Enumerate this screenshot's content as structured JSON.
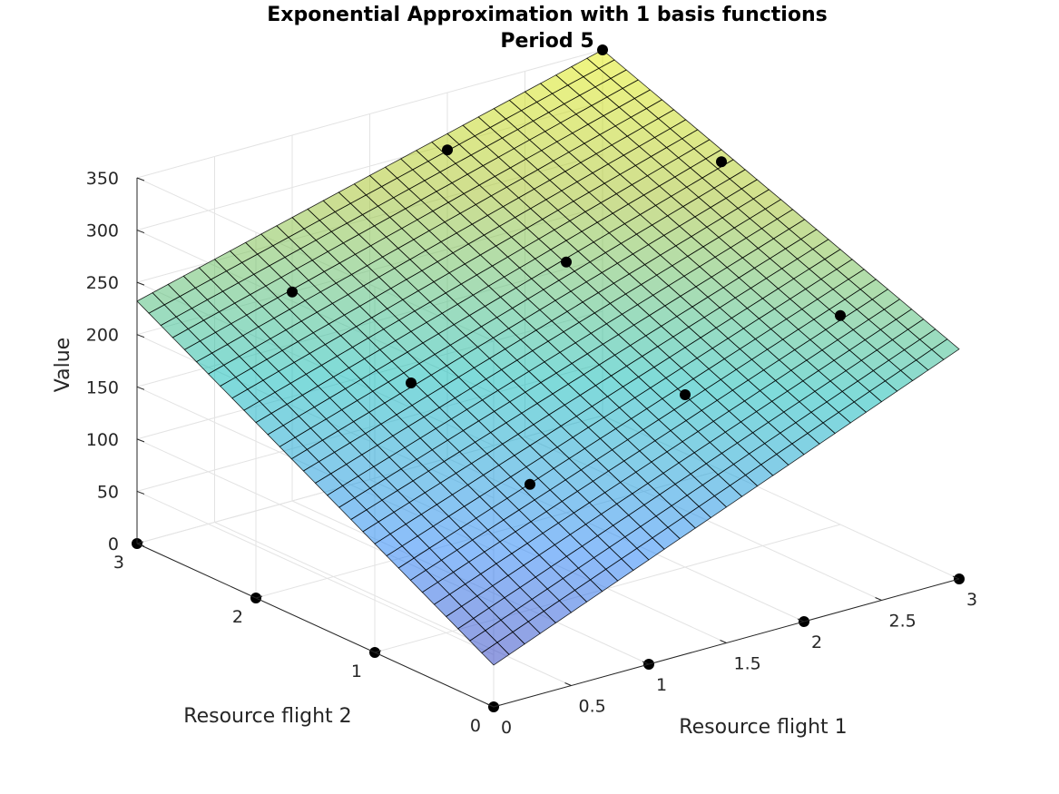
{
  "chart_data": {
    "type": "surface",
    "title": [
      "Exponential Approximation with 1 basis functions",
      "Period 5"
    ],
    "xlabel": "Resource flight 1",
    "ylabel": "Resource flight 2",
    "zlabel": "Value",
    "xlim": [
      0,
      3
    ],
    "ylim": [
      0,
      3
    ],
    "zlim": [
      0,
      350
    ],
    "x_ticks": [
      "0",
      "0.5",
      "1",
      "1.5",
      "2",
      "2.5",
      "3"
    ],
    "y_ticks": [
      "0",
      "1",
      "2",
      "3"
    ],
    "z_ticks": [
      "0",
      "50",
      "100",
      "150",
      "200",
      "250",
      "300",
      "350"
    ],
    "grid": true,
    "colormap": "parula",
    "surface": {
      "x_range": [
        0,
        3
      ],
      "y_range": [
        0,
        3
      ],
      "mesh_size": 30,
      "corner_values": {
        "x0_y0": 40,
        "x3_y0": 220,
        "x0_y3": 232,
        "x3_y3": 350
      }
    },
    "points": [
      {
        "x": 0,
        "y": 0,
        "z": 0
      },
      {
        "x": 1,
        "y": 0,
        "z": 0
      },
      {
        "x": 2,
        "y": 0,
        "z": 0
      },
      {
        "x": 3,
        "y": 0,
        "z": 0
      },
      {
        "x": 0,
        "y": 1,
        "z": 0
      },
      {
        "x": 1,
        "y": 1,
        "z": 120
      },
      {
        "x": 2,
        "y": 1,
        "z": 165
      },
      {
        "x": 3,
        "y": 1,
        "z": 200
      },
      {
        "x": 0,
        "y": 2,
        "z": 0
      },
      {
        "x": 1,
        "y": 2,
        "z": 165
      },
      {
        "x": 2,
        "y": 2,
        "z": 240
      },
      {
        "x": 3,
        "y": 2,
        "z": 295
      },
      {
        "x": 0,
        "y": 3,
        "z": 0
      },
      {
        "x": 1,
        "y": 3,
        "z": 200
      },
      {
        "x": 2,
        "y": 3,
        "z": 295
      },
      {
        "x": 3,
        "y": 3,
        "z": 350
      }
    ]
  }
}
